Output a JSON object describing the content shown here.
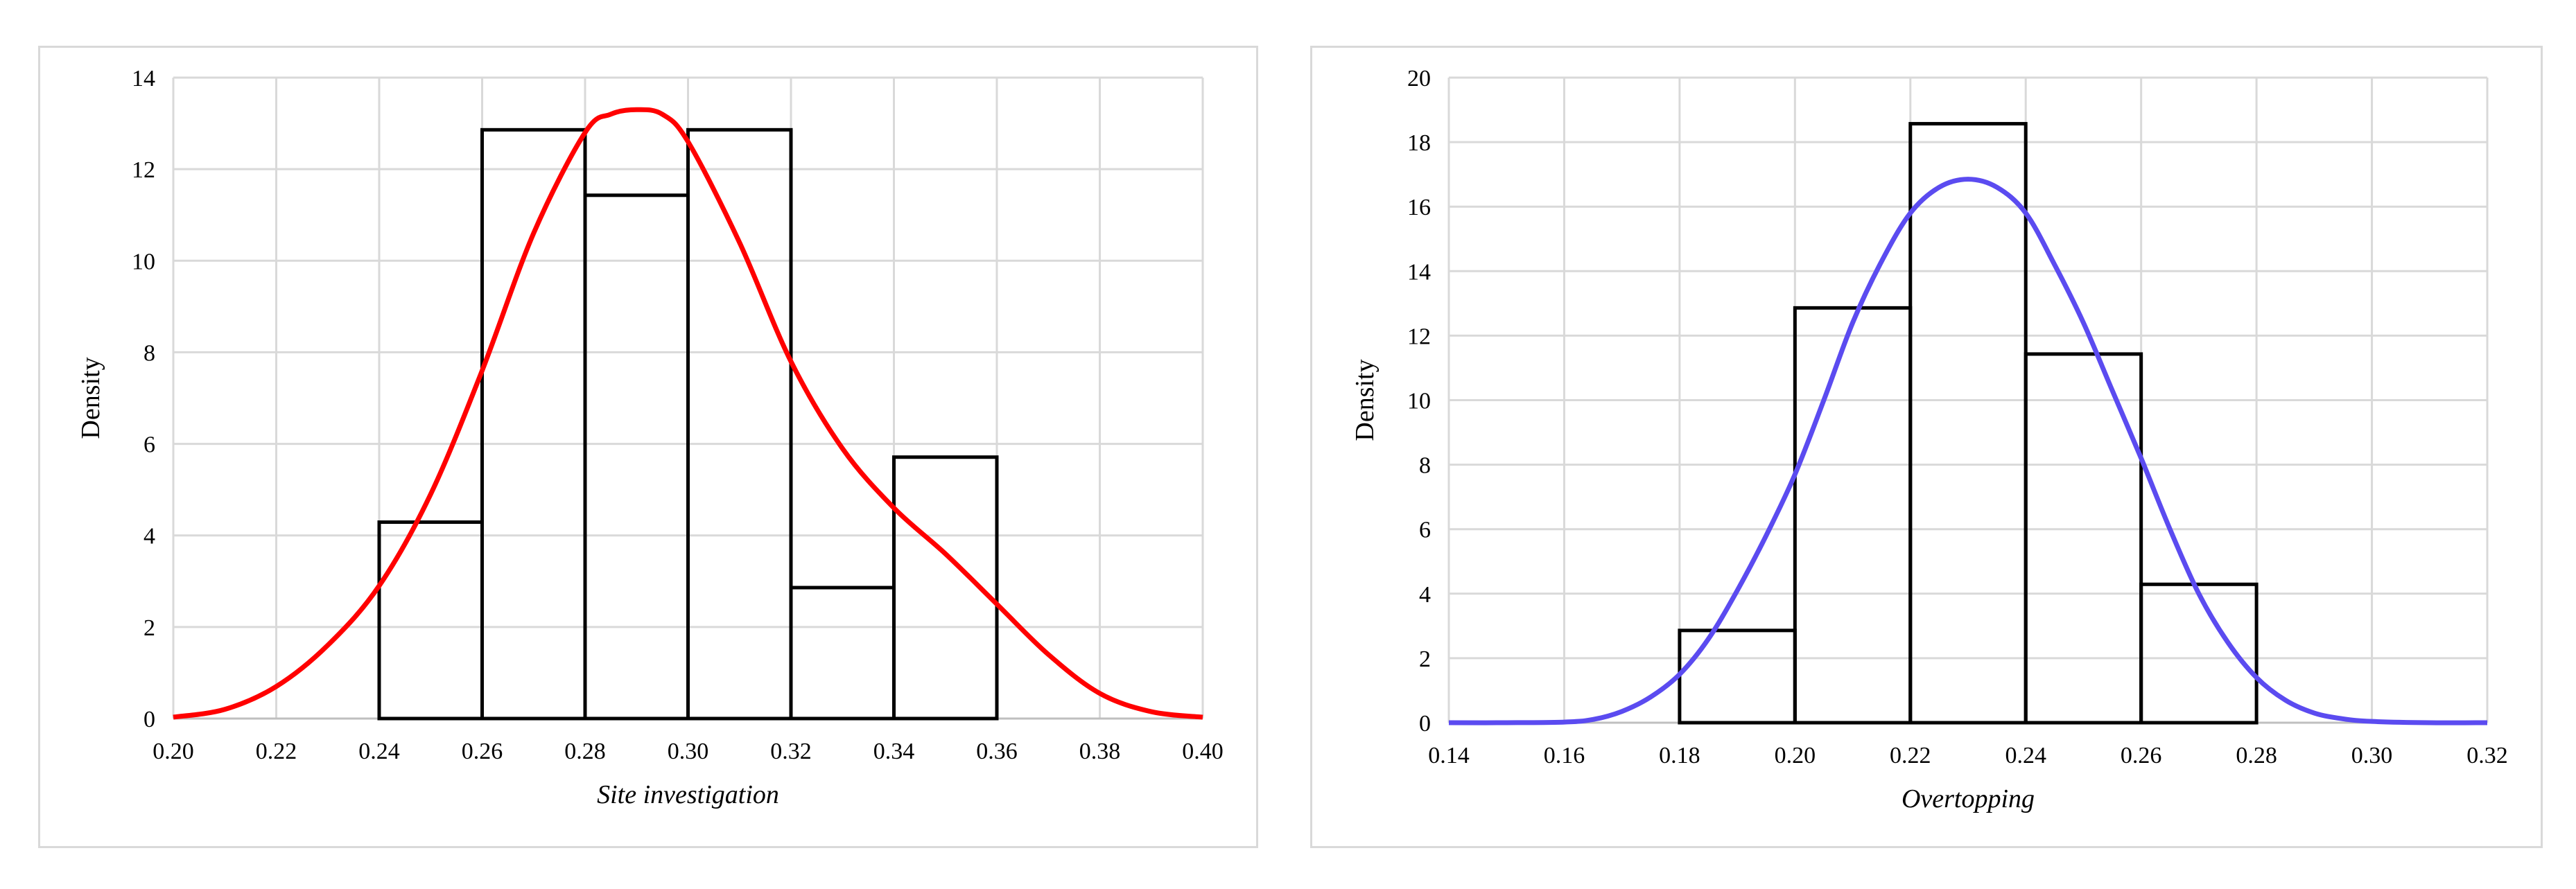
{
  "chart_data": [
    {
      "type": "bar",
      "subtype": "histogram-with-density-curve",
      "title": "",
      "xlabel": "Site investigation",
      "ylabel": "Density",
      "xlim": [
        0.2,
        0.4
      ],
      "ylim": [
        0,
        14
      ],
      "x_ticks": [
        "0.20",
        "0.22",
        "0.24",
        "0.26",
        "0.28",
        "0.30",
        "0.32",
        "0.34",
        "0.36",
        "0.38",
        "0.40"
      ],
      "y_ticks": [
        "0",
        "2",
        "4",
        "6",
        "8",
        "10",
        "12",
        "14"
      ],
      "grid": true,
      "legend": "none",
      "bins": [
        {
          "x0": 0.24,
          "x1": 0.26,
          "value": 4.29
        },
        {
          "x0": 0.26,
          "x1": 0.28,
          "value": 12.86
        },
        {
          "x0": 0.28,
          "x1": 0.3,
          "value": 11.43
        },
        {
          "x0": 0.3,
          "x1": 0.32,
          "value": 12.86
        },
        {
          "x0": 0.32,
          "x1": 0.34,
          "value": 2.86
        },
        {
          "x0": 0.34,
          "x1": 0.36,
          "value": 5.71
        }
      ],
      "curve": {
        "color": "#ff0000",
        "x": [
          0.2,
          0.21,
          0.22,
          0.23,
          0.24,
          0.25,
          0.26,
          0.27,
          0.28,
          0.285,
          0.29,
          0.295,
          0.3,
          0.31,
          0.32,
          0.33,
          0.34,
          0.35,
          0.36,
          0.37,
          0.38,
          0.39,
          0.4
        ],
        "y": [
          0.03,
          0.2,
          0.7,
          1.6,
          2.9,
          4.9,
          7.6,
          10.6,
          12.8,
          13.2,
          13.3,
          13.2,
          12.6,
          10.4,
          7.8,
          5.9,
          4.6,
          3.6,
          2.5,
          1.4,
          0.55,
          0.15,
          0.03
        ]
      }
    },
    {
      "type": "bar",
      "subtype": "histogram-with-density-curve",
      "title": "",
      "xlabel": "Overtopping",
      "ylabel": "Density",
      "xlim": [
        0.14,
        0.32
      ],
      "ylim": [
        0,
        20
      ],
      "x_ticks": [
        "0.14",
        "0.16",
        "0.18",
        "0.20",
        "0.22",
        "0.24",
        "0.26",
        "0.28",
        "0.30",
        "0.32"
      ],
      "y_ticks": [
        "0",
        "2",
        "4",
        "6",
        "8",
        "10",
        "12",
        "14",
        "16",
        "18",
        "20"
      ],
      "grid": true,
      "legend": "none",
      "bins": [
        {
          "x0": 0.18,
          "x1": 0.2,
          "value": 2.86
        },
        {
          "x0": 0.2,
          "x1": 0.22,
          "value": 12.86
        },
        {
          "x0": 0.22,
          "x1": 0.24,
          "value": 18.57
        },
        {
          "x0": 0.24,
          "x1": 0.26,
          "value": 11.43
        },
        {
          "x0": 0.26,
          "x1": 0.28,
          "value": 4.29
        }
      ],
      "curve": {
        "color": "#5b4bf0",
        "x": [
          0.14,
          0.15,
          0.16,
          0.165,
          0.17,
          0.175,
          0.18,
          0.185,
          0.19,
          0.195,
          0.2,
          0.205,
          0.21,
          0.215,
          0.22,
          0.225,
          0.23,
          0.235,
          0.24,
          0.245,
          0.25,
          0.255,
          0.26,
          0.265,
          0.27,
          0.275,
          0.28,
          0.285,
          0.29,
          0.295,
          0.3,
          0.31,
          0.32
        ],
        "y": [
          0,
          0,
          0.02,
          0.1,
          0.35,
          0.8,
          1.5,
          2.6,
          4.1,
          5.8,
          7.7,
          10.0,
          12.4,
          14.3,
          15.8,
          16.6,
          16.85,
          16.6,
          15.8,
          14.2,
          12.4,
          10.3,
          8.2,
          6.0,
          4.0,
          2.5,
          1.4,
          0.7,
          0.3,
          0.12,
          0.04,
          0,
          0
        ]
      }
    }
  ]
}
